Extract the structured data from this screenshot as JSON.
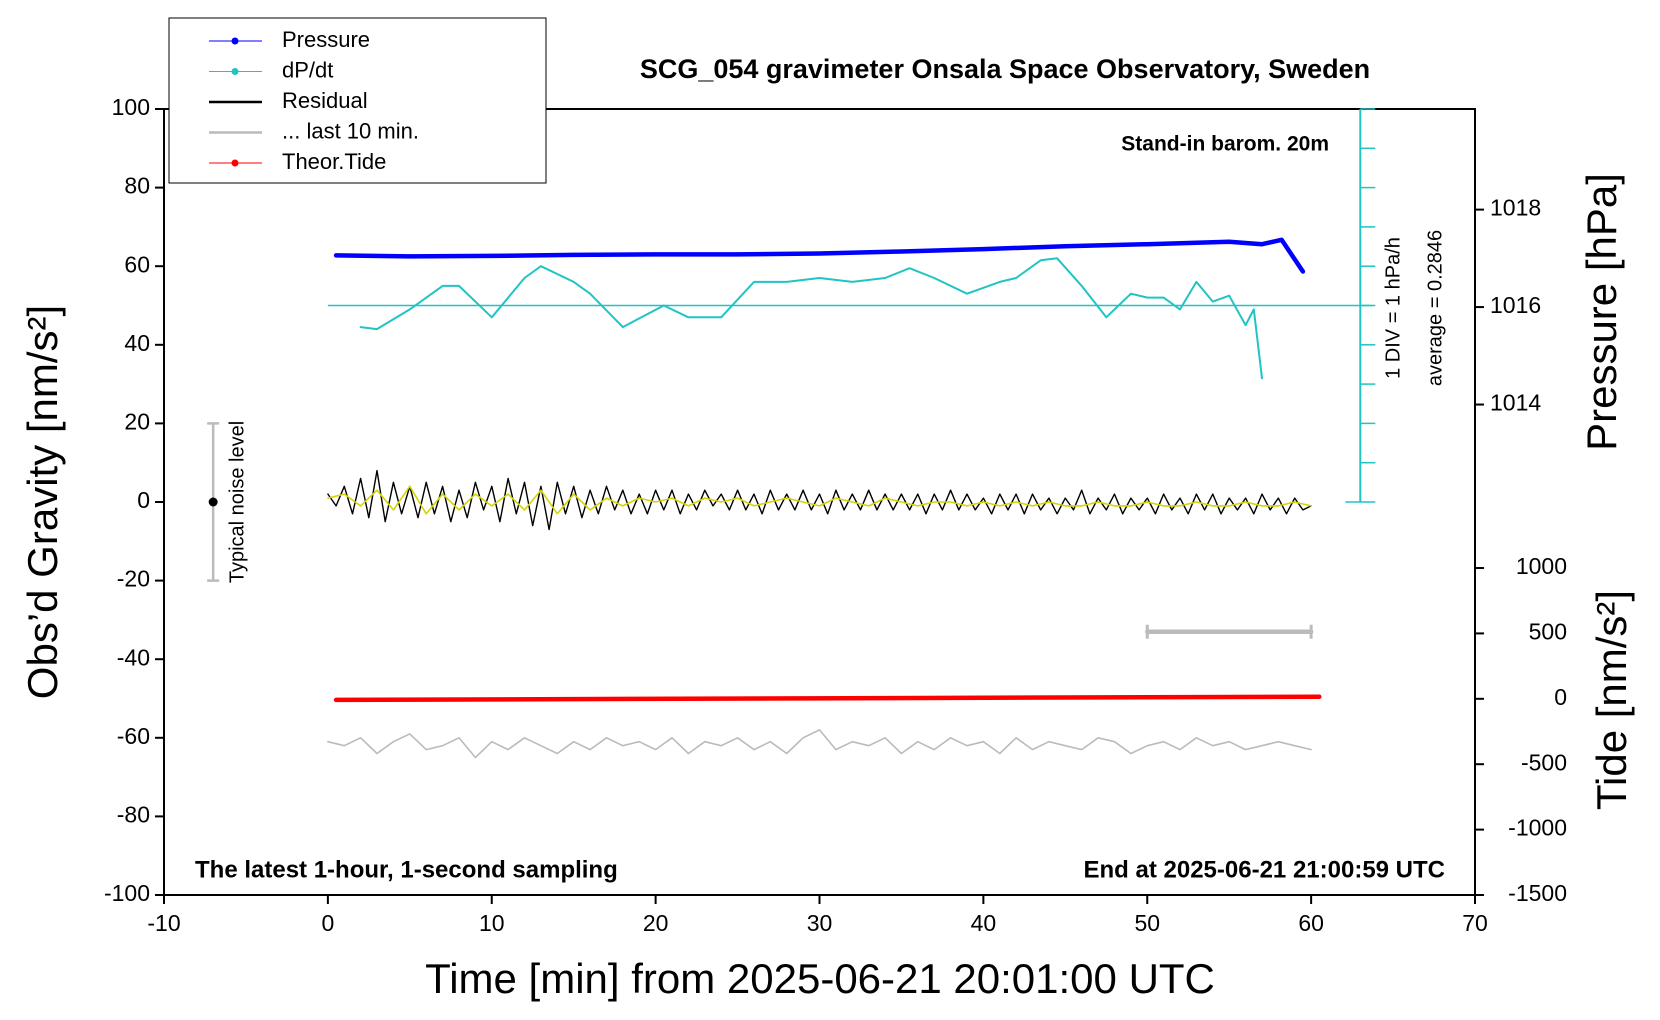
{
  "chart_data": {
    "type": "line",
    "title": "SCG_054 gravimeter Onsala Space Observatory, Sweden",
    "x_label": "Time [min] from 2025-06-21 20:01:00 UTC",
    "y_label": "Obs’d Gravity [nm/s²]",
    "y2_label": "Pressure [hPa]",
    "y3_label": "Tide [nm/s²]",
    "annotations": [
      "Stand-in barom. 20m",
      "The latest 1-hour, 1-second sampling",
      "End at 2025-06-21 21:00:59 UTC",
      "Typical noise level",
      "1 DIV = 1 hPa/h",
      "average = 0.2846"
    ],
    "xlim": [
      -10,
      70
    ],
    "xticks": [
      -10,
      0,
      10,
      20,
      30,
      40,
      50,
      60,
      70
    ],
    "ylim": [
      -100,
      100
    ],
    "yticks": [
      -100,
      -80,
      -60,
      -40,
      -20,
      0,
      20,
      40,
      60,
      80,
      100
    ],
    "y2lim": [
      1012,
      1020
    ],
    "y2ticks": [
      1014,
      1016,
      1018
    ],
    "y3lim": [
      -1500,
      1000
    ],
    "y3ticks": [
      -1500,
      -1000,
      -500,
      0,
      500,
      1000
    ],
    "noise_bar": {
      "x": -7,
      "low": -20,
      "high": 20,
      "center": 0
    },
    "dpdt_axis": {
      "x": 63,
      "ticks": [
        0,
        10,
        20,
        30,
        40,
        50,
        60,
        70,
        80,
        90,
        100
      ],
      "average_level": 50,
      "average_x": [
        0,
        63.7
      ]
    },
    "series": [
      {
        "name": "Pressure",
        "color": "#0000ff",
        "axis": "y2",
        "marker": true,
        "x": [
          0.5,
          5,
          10,
          15,
          20,
          25,
          30,
          35,
          40,
          45,
          50,
          55,
          57,
          58.2,
          59.5
        ],
        "values": [
          1017.06,
          1017.04,
          1017.05,
          1017.07,
          1017.08,
          1017.08,
          1017.1,
          1017.14,
          1017.19,
          1017.25,
          1017.29,
          1017.34,
          1017.29,
          1017.38,
          1016.73
        ]
      },
      {
        "name": "dP/dt",
        "color": "#20c4c4",
        "marker": true,
        "x": [
          2,
          3,
          5,
          7,
          8,
          10,
          12,
          13,
          15,
          16,
          18,
          20.5,
          22,
          24,
          26,
          28,
          30,
          32,
          34,
          35.5,
          37,
          39,
          41,
          42,
          43.5,
          44.5,
          46,
          47.5,
          49,
          50,
          51,
          52,
          53,
          54,
          55,
          56,
          56.5,
          57
        ],
        "values": [
          44.5,
          44,
          49,
          55,
          55,
          47,
          57,
          60,
          56,
          53,
          44.5,
          50,
          47,
          47,
          56,
          56,
          57,
          56,
          57,
          59.5,
          57,
          53,
          56,
          57,
          61.5,
          62,
          55,
          47,
          53,
          52,
          52,
          49,
          56,
          51,
          52.5,
          45,
          49,
          31.5
        ]
      },
      {
        "name": "Residual",
        "color": "#000000",
        "x": [
          0,
          0.5,
          1,
          1.5,
          2,
          2.5,
          3,
          3.5,
          4,
          4.5,
          5,
          5.5,
          6,
          6.5,
          7,
          7.5,
          8,
          8.5,
          9,
          9.5,
          10,
          10.5,
          11,
          11.5,
          12,
          12.5,
          13,
          13.5,
          14,
          14.5,
          15,
          15.5,
          16,
          16.5,
          17,
          17.5,
          18,
          18.5,
          19,
          19.5,
          20,
          20.5,
          21,
          21.5,
          22,
          22.5,
          23,
          23.5,
          24,
          24.5,
          25,
          25.5,
          26,
          26.5,
          27,
          27.5,
          28,
          28.5,
          29,
          29.5,
          30,
          30.5,
          31,
          31.5,
          32,
          32.5,
          33,
          33.5,
          34,
          34.5,
          35,
          35.5,
          36,
          36.5,
          37,
          37.5,
          38,
          38.5,
          39,
          39.5,
          40,
          40.5,
          41,
          41.5,
          42,
          42.5,
          43,
          43.5,
          44,
          44.5,
          45,
          45.5,
          46,
          46.5,
          47,
          47.5,
          48,
          48.5,
          49,
          49.5,
          50,
          50.5,
          51,
          51.5,
          52,
          52.5,
          53,
          53.5,
          54,
          54.5,
          55,
          55.5,
          56,
          56.5,
          57,
          57.5,
          58,
          58.5,
          59,
          59.5,
          60
        ],
        "values": [
          2,
          -1,
          4,
          -3,
          6,
          -4,
          8,
          -5,
          5,
          -3,
          4,
          -4,
          5,
          -3,
          4,
          -5,
          3,
          -4,
          5,
          -2,
          4,
          -5,
          6,
          -3,
          5,
          -6,
          4,
          -7,
          5,
          -3,
          4,
          -4,
          3,
          -3,
          4,
          -2,
          3,
          -3,
          2,
          -3,
          3,
          -2,
          3,
          -3,
          2,
          -2,
          3,
          -1,
          2,
          -2,
          3,
          -2,
          2,
          -3,
          3,
          -2,
          2,
          -2,
          3,
          -2,
          2,
          -3,
          3,
          -2,
          2,
          -2,
          3,
          -2,
          2,
          -2,
          2,
          -2,
          2,
          -3,
          2,
          -2,
          3,
          -2,
          2,
          -2,
          1,
          -3,
          2,
          -2,
          2,
          -3,
          2,
          -2,
          1,
          -3,
          1,
          -2,
          3,
          -3,
          1,
          -2,
          2,
          -3,
          1,
          -2,
          1,
          -3,
          2,
          -2,
          1,
          -3,
          2,
          -2,
          2,
          -3,
          1,
          -2,
          1,
          -3,
          2,
          -2,
          1,
          -3,
          1,
          -2,
          -1
        ]
      },
      {
        "color": "#d4d400",
        "x": [
          0,
          1,
          2,
          3,
          4,
          5,
          6,
          7,
          8,
          9,
          10,
          11,
          12,
          13,
          14,
          15,
          16,
          17,
          18,
          19,
          20,
          21,
          22,
          23,
          24,
          25,
          26,
          27,
          28,
          29,
          30,
          31,
          32,
          33,
          34,
          35,
          36,
          37,
          38,
          39,
          40,
          41,
          42,
          43,
          44,
          45,
          46,
          47,
          48,
          49,
          50,
          51,
          52,
          53,
          54,
          55,
          56,
          57,
          58,
          59,
          60
        ],
        "values": [
          1,
          2,
          -1,
          3,
          -2,
          4,
          -3,
          2,
          -2,
          2,
          -1,
          2,
          -2,
          3,
          -3,
          2,
          -2,
          1,
          -1,
          1,
          0,
          1,
          -1,
          1,
          0,
          1,
          -1,
          0,
          1,
          0,
          -1,
          1,
          0,
          -1,
          1,
          0,
          -1,
          0,
          0,
          -1,
          0,
          -1,
          0,
          -1,
          0,
          -1,
          -1,
          0,
          -1,
          -1,
          0,
          -1,
          -1,
          0,
          -1,
          -1,
          0,
          -1,
          -1,
          0,
          -1
        ]
      },
      {
        "name": "... last 10 min.",
        "color": "#bbbbbb",
        "caps": true,
        "x": [
          50,
          60
        ],
        "values": [
          -33,
          -33
        ]
      },
      {
        "color": "#bbbbbb",
        "x": [
          0,
          1,
          2,
          3,
          4,
          5,
          6,
          7,
          8,
          9,
          10,
          11,
          12,
          13,
          14,
          15,
          16,
          17,
          18,
          19,
          20,
          21,
          22,
          23,
          24,
          25,
          26,
          27,
          28,
          29,
          30,
          31,
          32,
          33,
          34,
          35,
          36,
          37,
          38,
          39,
          40,
          41,
          42,
          43,
          44,
          45,
          46,
          47,
          48,
          49,
          50,
          51,
          52,
          53,
          54,
          55,
          56,
          57,
          58,
          59,
          60
        ],
        "values": [
          -61,
          -62,
          -60,
          -64,
          -61,
          -59,
          -63,
          -62,
          -60,
          -65,
          -61,
          -63,
          -60,
          -62,
          -64,
          -61,
          -63,
          -60,
          -62,
          -61,
          -63,
          -60,
          -64,
          -61,
          -62,
          -60,
          -63,
          -61,
          -64,
          -60,
          -58,
          -63,
          -61,
          -62,
          -60,
          -64,
          -61,
          -63,
          -60,
          -62,
          -61,
          -64,
          -60,
          -63,
          -61,
          -62,
          -63,
          -60,
          -61,
          -64,
          -62,
          -61,
          -63,
          -60,
          -62,
          -61,
          -63,
          -62,
          -61,
          -62,
          -63
        ]
      },
      {
        "name": "Theor.Tide",
        "color": "#ff0000",
        "axis": "y3",
        "marker": true,
        "x": [
          0.5,
          60.5
        ],
        "values": [
          -8,
          16
        ]
      }
    ]
  }
}
